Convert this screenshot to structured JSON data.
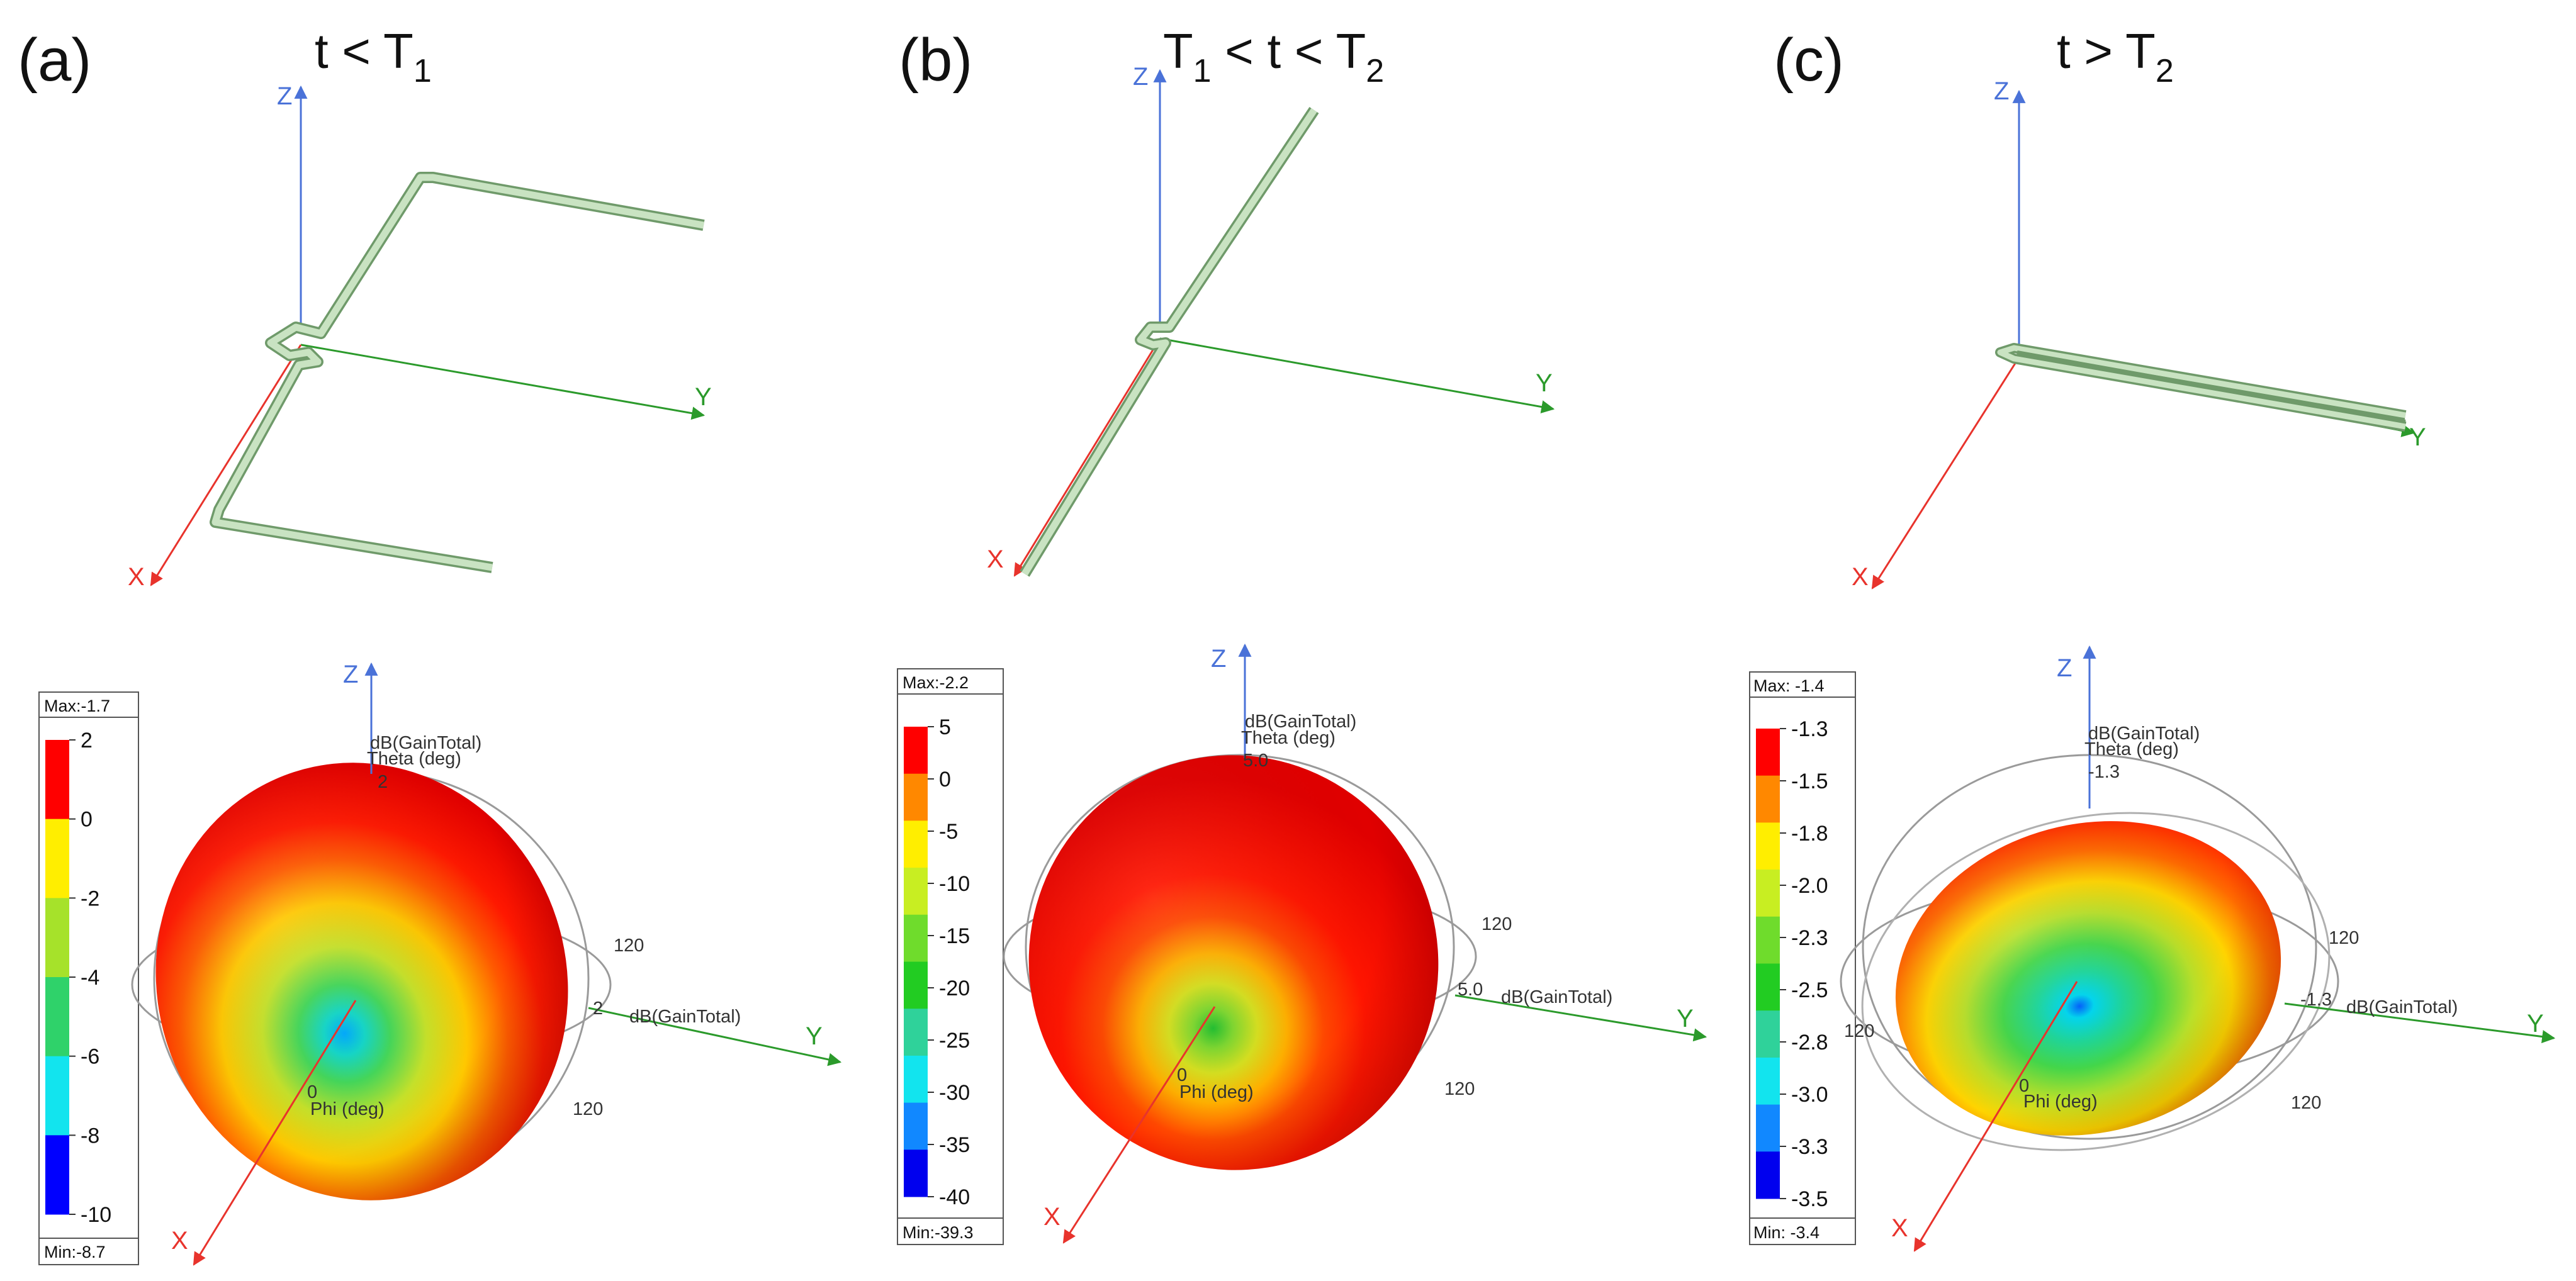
{
  "panels": [
    {
      "label": "(a)",
      "condition": {
        "pre": "t < T",
        "sub": "1",
        "mid": "",
        "sub2": ""
      },
      "structure_axes": {
        "x": "X",
        "y": "Y",
        "z": "Z"
      },
      "pattern_axes": {
        "x": "X",
        "y": "Y",
        "z": "Z"
      },
      "pattern_labels": {
        "gain_top": "dB(GainTotal)",
        "theta": "Theta (deg)",
        "gain_side": "dB(GainTotal)",
        "phi": "Phi (deg)",
        "zero": "0",
        "tick_top": "2",
        "tick_side": "2",
        "angle_upper": "120",
        "angle_lower": "120"
      },
      "legend": {
        "max": "Max:-1.7",
        "min": "Min:-8.7",
        "ticks": [
          "2",
          "0",
          "-2",
          "-4",
          "-6",
          "-8",
          "-10"
        ],
        "colors": [
          "#ff0000",
          "#ffee00",
          "#a6e22a",
          "#2fd26a",
          "#12e4ee",
          "#0000ff"
        ]
      }
    },
    {
      "label": "(b)",
      "condition": {
        "pre": "T",
        "sub": "1",
        "mid": " < t < T",
        "sub2": "2"
      },
      "structure_axes": {
        "x": "X",
        "y": "Y",
        "z": "Z"
      },
      "pattern_axes": {
        "x": "X",
        "y": "Y",
        "z": "Z"
      },
      "pattern_labels": {
        "gain_top": "dB(GainTotal)",
        "theta": "Theta (deg)",
        "gain_side": "dB(GainTotal)",
        "phi": "Phi (deg)",
        "zero": "0",
        "tick_top": "5.0",
        "tick_side": "5.0",
        "angle_upper": "120",
        "angle_lower": "120"
      },
      "legend": {
        "max": "Max:-2.2",
        "min": "Min:-39.3",
        "ticks": [
          "5",
          "0",
          "-5",
          "-10",
          "-15",
          "-20",
          "-25",
          "-30",
          "-35",
          "-40"
        ],
        "colors": [
          "#ff0000",
          "#ff8800",
          "#ffee00",
          "#c8ee22",
          "#6fdc2c",
          "#22cc22",
          "#2fd29a",
          "#12e4ee",
          "#1188ff",
          "#0000ee"
        ]
      }
    },
    {
      "label": "(c)",
      "condition": {
        "pre": "t > T",
        "sub": "2",
        "mid": "",
        "sub2": ""
      },
      "structure_axes": {
        "x": "X",
        "y": "Y",
        "z": "Z"
      },
      "pattern_axes": {
        "x": "X",
        "y": "Y",
        "z": "Z"
      },
      "pattern_labels": {
        "gain_top": "dB(GainTotal)",
        "theta": "Theta (deg)",
        "gain_side": "dB(GainTotal)",
        "phi": "Phi (deg)",
        "zero": "0",
        "tick_top": "-1.3",
        "tick_side": "-1.3",
        "angle_upper": "120",
        "angle_lower": "120",
        "angle_left": "120"
      },
      "legend": {
        "max": "Max: -1.4",
        "min": "Min: -3.4",
        "ticks": [
          "-1.3",
          "-1.5",
          "-1.8",
          "-2.0",
          "-2.3",
          "-2.5",
          "-2.8",
          "-3.0",
          "-3.3",
          "-3.5"
        ],
        "colors": [
          "#ff0000",
          "#ff8800",
          "#ffee00",
          "#c8ee22",
          "#6fdc2c",
          "#22cc22",
          "#2fd29a",
          "#12e4ee",
          "#1188ff",
          "#0000ee"
        ]
      }
    }
  ],
  "colors": {
    "x_axis": "#e8332c",
    "y_axis": "#2b9a2b",
    "z_axis": "#4a72d8",
    "wire_fill": "#c9e3c2",
    "wire_edge": "#6f9a6a",
    "pattern_hot": "#ff0000",
    "pattern_cool": "#00e0ff",
    "pattern_min": "#0000ff"
  }
}
